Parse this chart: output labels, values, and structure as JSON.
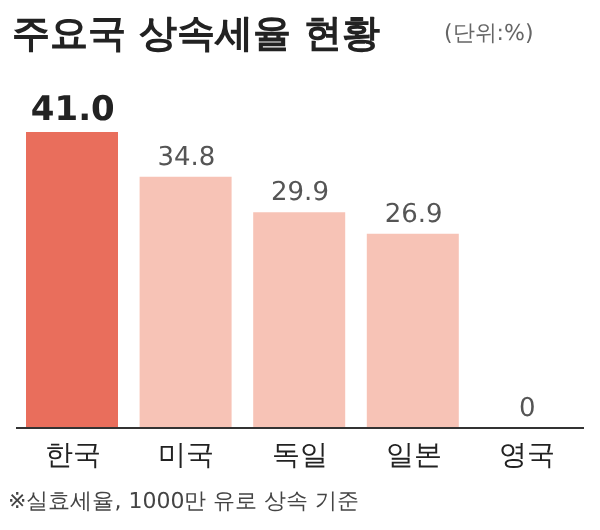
{
  "chart_data": {
    "type": "bar",
    "title": "주요국 상속세율 현황",
    "subtitle": "(단위:%)",
    "categories": [
      "한국",
      "미국",
      "독일",
      "일본",
      "영국"
    ],
    "values": [
      41.0,
      34.8,
      29.9,
      26.9,
      0
    ],
    "colors": [
      "#e96e5c",
      "#f7c3b6",
      "#f7c3b6",
      "#f7c3b6",
      "#f7c3b6"
    ],
    "value_labels": [
      "41.0",
      "34.8",
      "29.9",
      "26.9",
      "0"
    ],
    "annotations": [
      "※실효세율, 1000만 유로 상속 기준"
    ]
  }
}
